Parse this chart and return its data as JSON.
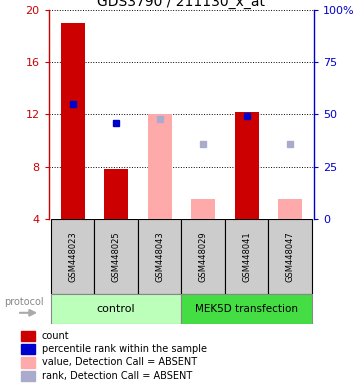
{
  "title": "GDS3790 / 211130_x_at",
  "samples": [
    "GSM448023",
    "GSM448025",
    "GSM448043",
    "GSM448029",
    "GSM448041",
    "GSM448047"
  ],
  "ylim_left": [
    4,
    20
  ],
  "ylim_right": [
    0,
    100
  ],
  "yticks_left": [
    4,
    8,
    12,
    16,
    20
  ],
  "yticks_right": [
    0,
    25,
    50,
    75,
    100
  ],
  "yticklabels_right": [
    "0",
    "25",
    "50",
    "75",
    "100%"
  ],
  "red_bars": [
    19.0,
    7.8,
    null,
    null,
    12.2,
    null
  ],
  "pink_bars": [
    null,
    null,
    12.0,
    5.5,
    null,
    5.5
  ],
  "blue_squares": [
    12.8,
    11.3,
    null,
    null,
    11.9,
    null
  ],
  "lavender_squares": [
    null,
    null,
    11.6,
    9.7,
    null,
    9.7
  ],
  "red_color": "#cc0000",
  "pink_color": "#ffaaaa",
  "blue_color": "#0000cc",
  "lavender_color": "#aaaacc",
  "ctrl_color": "#bbffbb",
  "mek_color": "#44dd44",
  "box_color": "#cccccc",
  "left_axis_color": "#cc0000",
  "right_axis_color": "#0000cc",
  "legend_items": [
    {
      "label": "count",
      "color": "#cc0000"
    },
    {
      "label": "percentile rank within the sample",
      "color": "#0000cc"
    },
    {
      "label": "value, Detection Call = ABSENT",
      "color": "#ffaaaa"
    },
    {
      "label": "rank, Detection Call = ABSENT",
      "color": "#aaaacc"
    }
  ]
}
